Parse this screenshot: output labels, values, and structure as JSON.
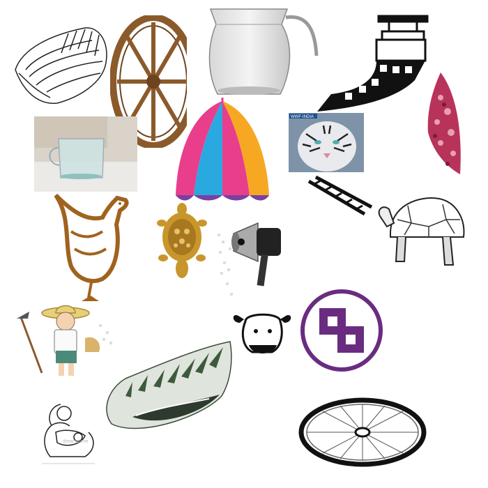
{
  "collage": {
    "items": [
      {
        "icon": "spiral-shell-icon"
      },
      {
        "icon": "wooden-cart-wheel-icon"
      },
      {
        "icon": "glass-pitcher-icon"
      },
      {
        "icon": "film-reel-projector-icon"
      },
      {
        "icon": "glass-measuring-jug-icon"
      },
      {
        "icon": "striped-umbrella-icon"
      },
      {
        "icon": "white-tiger-icon"
      },
      {
        "icon": "patterned-cushion-icon"
      },
      {
        "icon": "ladder-icon"
      },
      {
        "icon": "hen-icon"
      },
      {
        "icon": "golden-turtle-figurine-icon"
      },
      {
        "icon": "megaphone-icon"
      },
      {
        "icon": "tortoise-icon"
      },
      {
        "icon": "farmer-with-hoe-icon"
      },
      {
        "icon": "sheep-head-icon"
      },
      {
        "icon": "swastika-symbol-icon"
      },
      {
        "icon": "conch-shell-icon"
      },
      {
        "icon": "mother-and-baby-icon"
      },
      {
        "icon": "spoked-wheel-icon"
      }
    ],
    "tiger_badge_text": "WWF-INDIA",
    "watermark_text": "dreamstime",
    "colors": {
      "wood": "#8b5a2b",
      "umbrella": [
        "#e83e8c",
        "#2aa8e0",
        "#f7a823",
        "#7b3fa0"
      ],
      "hen": "#a0621e",
      "gold": "#c8962a",
      "swastika": "#6a2c80",
      "cushion": "#b8335a"
    }
  }
}
